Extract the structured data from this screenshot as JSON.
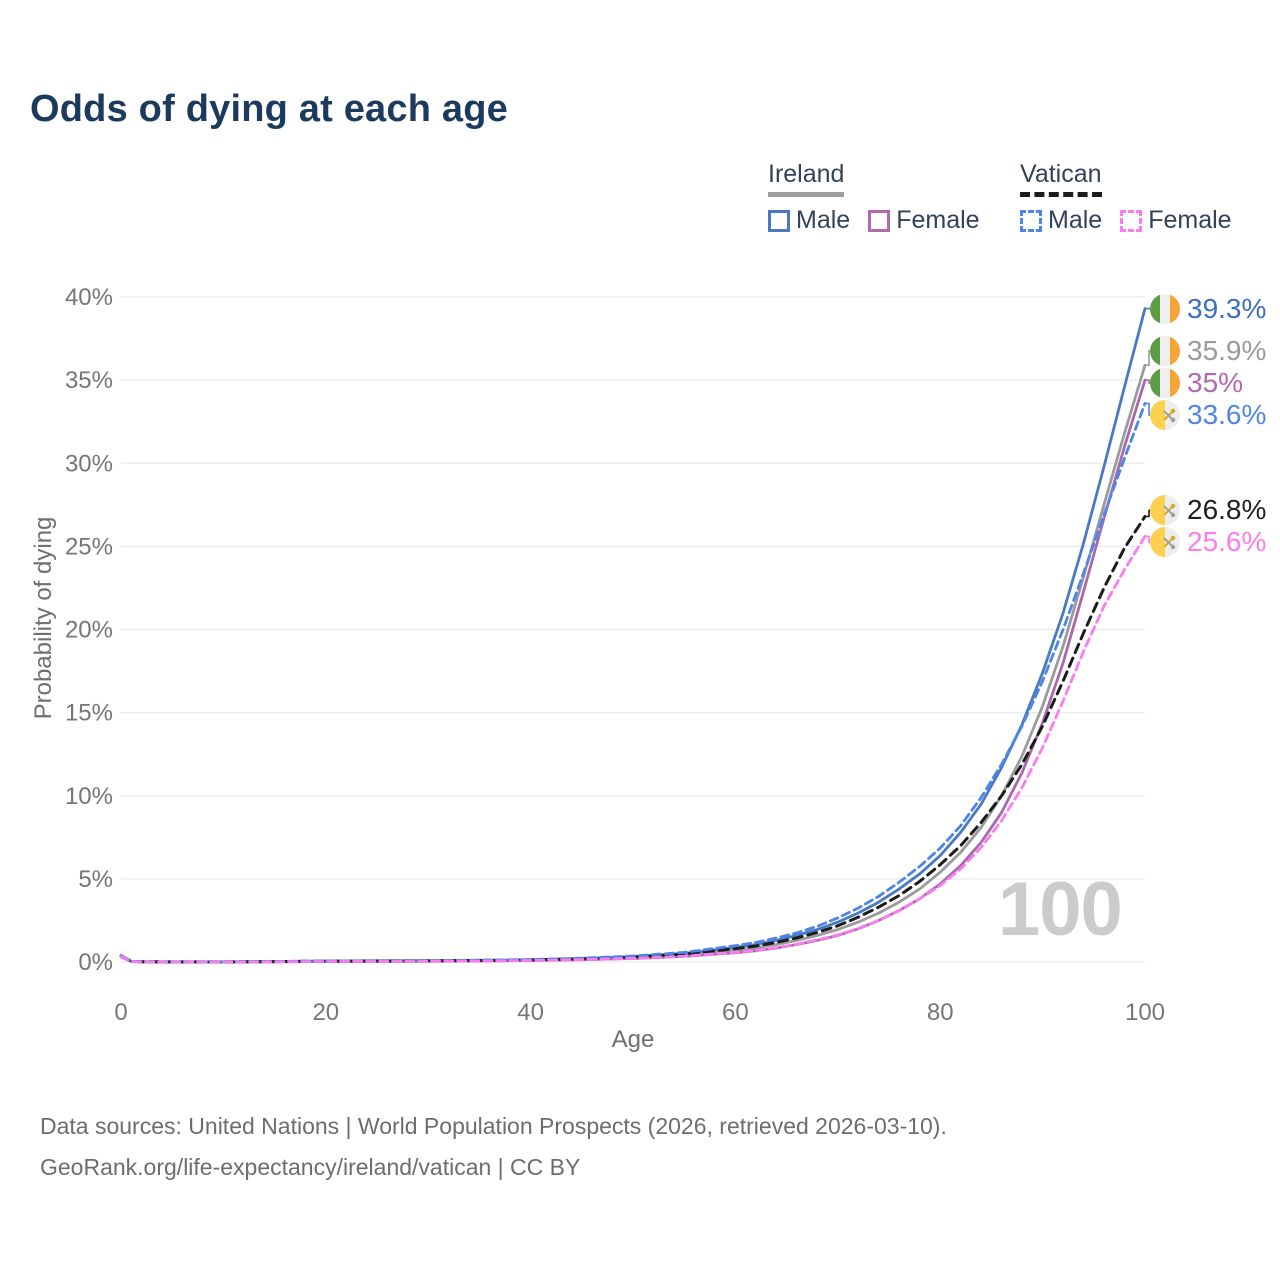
{
  "title": "Odds of dying at each age",
  "legend": {
    "groups": [
      {
        "label": "Ireland",
        "underline_style": "solid",
        "underline_color": "#9e9e9e",
        "items": [
          {
            "label": "Male",
            "color": "#4a79c4",
            "dash": false
          },
          {
            "label": "Female",
            "color": "#b269ae",
            "dash": false
          }
        ]
      },
      {
        "label": "Vatican",
        "underline_style": "dashed",
        "underline_color": "#1c1c1c",
        "items": [
          {
            "label": "Male",
            "color": "#4c86ea",
            "dash": true
          },
          {
            "label": "Female",
            "color": "#fb7cee",
            "dash": true
          }
        ]
      }
    ]
  },
  "chart_data": {
    "type": "line",
    "title": "Odds of dying at each age",
    "xlabel": "Age",
    "ylabel": "Probability of dying",
    "xlim": [
      0,
      100
    ],
    "ylim": [
      0,
      40
    ],
    "x_ticks": [
      0,
      20,
      40,
      60,
      80,
      100
    ],
    "y_ticks": [
      "0%",
      "5%",
      "10%",
      "15%",
      "20%",
      "25%",
      "30%",
      "35%",
      "40%"
    ],
    "grid": "horizontal",
    "legend_position": "top-right",
    "watermark": "100",
    "x": [
      0,
      1,
      2,
      5,
      10,
      15,
      20,
      25,
      30,
      35,
      40,
      45,
      50,
      55,
      60,
      62,
      64,
      66,
      68,
      70,
      72,
      74,
      76,
      78,
      80,
      82,
      84,
      86,
      88,
      90,
      92,
      94,
      96,
      98,
      100
    ],
    "series": [
      {
        "id": "ireland_all",
        "name": "Ireland (combined)",
        "country": "Ireland",
        "color": "#9b9b9b",
        "dash": false,
        "width": 2.8,
        "end_label": "35.9%",
        "label_color": "#9a9a9a",
        "values": [
          0.32,
          0.035,
          0.018,
          0.009,
          0.009,
          0.022,
          0.045,
          0.05,
          0.06,
          0.08,
          0.11,
          0.17,
          0.26,
          0.42,
          0.7,
          0.85,
          1.05,
          1.3,
          1.6,
          1.95,
          2.4,
          2.95,
          3.6,
          4.4,
          5.4,
          6.6,
          8.1,
          10.0,
          12.4,
          15.4,
          19.0,
          23.2,
          27.5,
          31.8,
          35.9
        ]
      },
      {
        "id": "ireland_female",
        "name": "Ireland female",
        "country": "Ireland",
        "color": "#a86aac",
        "dash": false,
        "width": 2.8,
        "end_label": "35%",
        "label_color": "#b168b1",
        "values": [
          0.3,
          0.03,
          0.015,
          0.008,
          0.008,
          0.015,
          0.03,
          0.035,
          0.045,
          0.06,
          0.09,
          0.14,
          0.21,
          0.34,
          0.56,
          0.68,
          0.84,
          1.05,
          1.3,
          1.6,
          2.0,
          2.5,
          3.1,
          3.8,
          4.7,
          5.8,
          7.2,
          9.0,
          11.4,
          14.4,
          18.0,
          22.3,
          26.7,
          31.0,
          35.0
        ]
      },
      {
        "id": "ireland_male",
        "name": "Ireland male",
        "country": "Ireland",
        "color": "#4a79c4",
        "dash": false,
        "width": 2.8,
        "end_label": "39.3%",
        "label_color": "#3d6fc0",
        "values": [
          0.35,
          0.04,
          0.02,
          0.01,
          0.01,
          0.03,
          0.06,
          0.07,
          0.08,
          0.1,
          0.13,
          0.2,
          0.32,
          0.52,
          0.88,
          1.05,
          1.3,
          1.6,
          1.95,
          2.4,
          2.95,
          3.6,
          4.4,
          5.3,
          6.4,
          7.8,
          9.5,
          11.7,
          14.3,
          17.4,
          21.0,
          25.2,
          29.8,
          34.6,
          39.3
        ]
      },
      {
        "id": "vatican_all",
        "name": "Vatican (combined)",
        "country": "Vatican",
        "color": "#1c1c1c",
        "dash": true,
        "width": 3,
        "end_label": "26.8%",
        "label_color": "#1f1f1f",
        "values": [
          0.36,
          0.037,
          0.019,
          0.009,
          0.009,
          0.025,
          0.05,
          0.06,
          0.07,
          0.09,
          0.125,
          0.19,
          0.3,
          0.48,
          0.8,
          0.96,
          1.18,
          1.45,
          1.78,
          2.18,
          2.7,
          3.3,
          4.0,
          4.85,
          5.85,
          7.0,
          8.4,
          10.0,
          11.9,
          14.2,
          16.9,
          19.8,
          22.5,
          24.9,
          26.8
        ]
      },
      {
        "id": "vatican_male",
        "name": "Vatican male",
        "country": "Vatican",
        "color": "#4c86ea",
        "dash": true,
        "width": 2.8,
        "end_label": "33.6%",
        "label_color": "#4e86e8",
        "values": [
          0.4,
          0.04,
          0.02,
          0.01,
          0.01,
          0.03,
          0.065,
          0.075,
          0.09,
          0.11,
          0.15,
          0.23,
          0.36,
          0.58,
          0.98,
          1.17,
          1.45,
          1.75,
          2.15,
          2.65,
          3.25,
          3.95,
          4.8,
          5.75,
          6.85,
          8.2,
          9.9,
          11.9,
          14.2,
          16.9,
          20.0,
          23.4,
          26.9,
          30.3,
          33.6
        ]
      },
      {
        "id": "vatican_female",
        "name": "Vatican female",
        "country": "Vatican",
        "color": "#fb7cee",
        "dash": true,
        "width": 2.8,
        "end_label": "25.6%",
        "label_color": "#ff7bec",
        "values": [
          0.32,
          0.03,
          0.015,
          0.008,
          0.008,
          0.015,
          0.032,
          0.037,
          0.047,
          0.063,
          0.092,
          0.145,
          0.215,
          0.35,
          0.58,
          0.7,
          0.86,
          1.07,
          1.33,
          1.63,
          2.02,
          2.5,
          3.08,
          3.8,
          4.6,
          5.6,
          6.9,
          8.5,
          10.5,
          12.9,
          15.7,
          18.7,
          21.4,
          23.6,
          25.6
        ]
      }
    ]
  },
  "footer": {
    "line1": "Data sources: United Nations | World Population Prospects (2026, retrieved 2026-03-10).",
    "line2": "GeoRank.org/life-expectancy/ireland/vatican | CC BY"
  }
}
